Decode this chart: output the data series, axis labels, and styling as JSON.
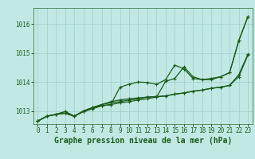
{
  "title": "Graphe pression niveau de la mer (hPa)",
  "background_color": "#c2e8e4",
  "plot_bg_color": "#c2e8e4",
  "grid_color": "#9ecec8",
  "line_color": "#1a5c1a",
  "xlim": [
    -0.5,
    23.5
  ],
  "ylim": [
    1012.55,
    1016.55
  ],
  "yticks": [
    1013,
    1014,
    1015,
    1016
  ],
  "xticks": [
    0,
    1,
    2,
    3,
    4,
    5,
    6,
    7,
    8,
    9,
    10,
    11,
    12,
    13,
    14,
    15,
    16,
    17,
    18,
    19,
    20,
    21,
    22,
    23
  ],
  "series": [
    [
      1012.65,
      1012.82,
      1012.88,
      1012.92,
      1012.82,
      1012.98,
      1013.08,
      1013.18,
      1013.22,
      1013.82,
      1013.92,
      1014.0,
      1013.98,
      1013.92,
      1014.08,
      1014.58,
      1014.45,
      1014.12,
      1014.08,
      1014.08,
      1014.18,
      1014.32,
      1015.42,
      1016.25
    ],
    [
      1012.65,
      1012.82,
      1012.88,
      1012.98,
      1012.82,
      1013.0,
      1013.12,
      1013.22,
      1013.28,
      1013.32,
      1013.38,
      1013.42,
      1013.48,
      1013.48,
      1014.02,
      1014.12,
      1014.52,
      1014.18,
      1014.08,
      1014.12,
      1014.18,
      1014.32,
      1015.42,
      1016.25
    ],
    [
      1012.65,
      1012.82,
      1012.88,
      1012.98,
      1012.82,
      1013.0,
      1013.12,
      1013.22,
      1013.32,
      1013.38,
      1013.42,
      1013.45,
      1013.48,
      1013.5,
      1013.52,
      1013.58,
      1013.62,
      1013.68,
      1013.72,
      1013.78,
      1013.82,
      1013.88,
      1014.25,
      1014.95
    ],
    [
      1012.65,
      1012.82,
      1012.88,
      1012.92,
      1012.82,
      1012.98,
      1013.08,
      1013.18,
      1013.22,
      1013.28,
      1013.32,
      1013.38,
      1013.42,
      1013.48,
      1013.52,
      1013.58,
      1013.62,
      1013.68,
      1013.72,
      1013.78,
      1013.82,
      1013.88,
      1014.18,
      1014.92
    ]
  ],
  "marker": "+",
  "markersize": 3,
  "linewidth": 0.9,
  "title_fontsize": 7,
  "tick_fontsize": 5.5
}
